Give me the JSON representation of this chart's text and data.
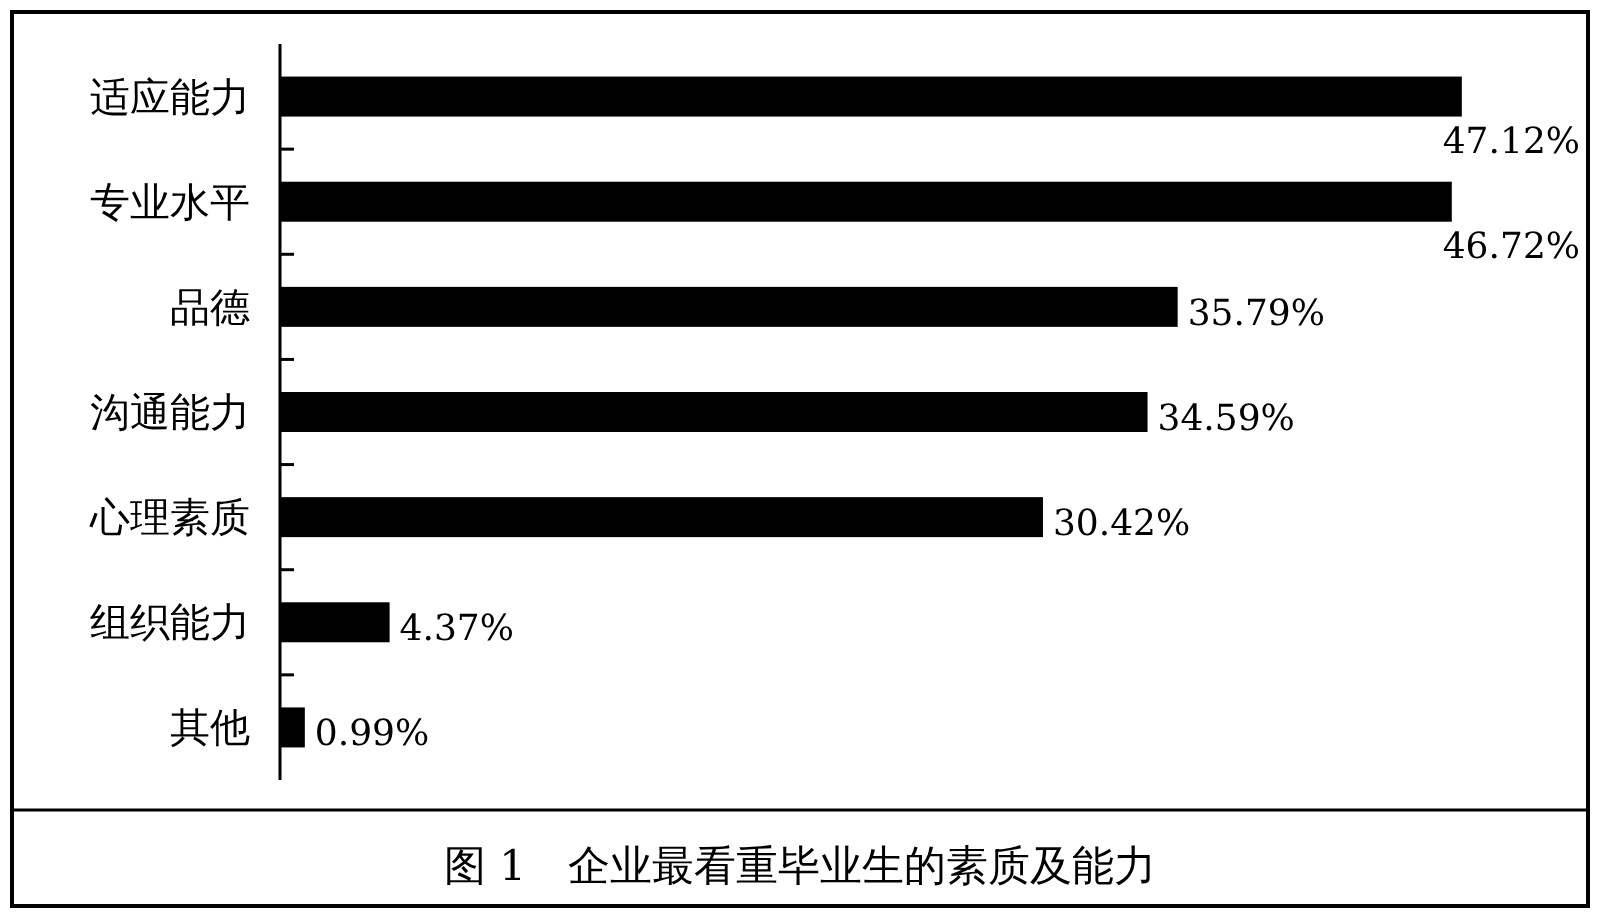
{
  "chart_data": {
    "type": "bar",
    "orientation": "horizontal",
    "title": "图 1　企业最看重毕业生的素质及能力",
    "categories": [
      "适应能力",
      "专业水平",
      "品德",
      "沟通能力",
      "心理素质",
      "组织能力",
      "其他"
    ],
    "values": [
      47.12,
      46.72,
      35.79,
      34.59,
      30.42,
      4.37,
      0.99
    ],
    "value_labels": [
      "47.12%",
      "46.72%",
      "35.79%",
      "34.59%",
      "30.42%",
      "4.37%",
      "0.99%"
    ],
    "color": "#000000"
  }
}
